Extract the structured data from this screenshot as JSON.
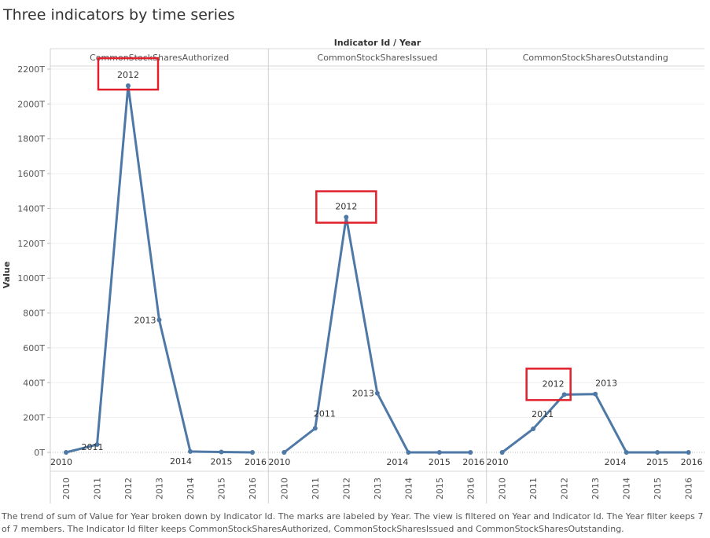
{
  "page": {
    "title": "Three indicators by time series",
    "caption": "The trend of sum of Value for Year broken down by Indicator Id.  The marks are labeled by Year. The view is filtered on Year and Indicator Id. The Year filter keeps 7 of 7 members. The Indicator Id filter keeps CommonStockSharesAuthorized, CommonStockSharesIssued and CommonStockSharesOutstanding."
  },
  "chart_data": {
    "type": "line",
    "header": "Indicator Id / Year",
    "ylabel": "Value",
    "ylim": [
      0,
      2200
    ],
    "yticks": [
      0,
      200,
      400,
      600,
      800,
      1000,
      1200,
      1400,
      1600,
      1800,
      2000,
      2200
    ],
    "ytick_labels": [
      "0T",
      "200T",
      "400T",
      "600T",
      "800T",
      "1000T",
      "1200T",
      "1400T",
      "1600T",
      "1800T",
      "2000T",
      "2200T"
    ],
    "categories": [
      "2010",
      "2011",
      "2012",
      "2013",
      "2014",
      "2015",
      "2016"
    ],
    "line_color": "#4e79a7",
    "highlight_color": "#e0202a",
    "highlight_year": "2012",
    "panels": [
      {
        "name": "CommonStockSharesAuthorized",
        "values": [
          0,
          45,
          2105,
          760,
          5,
          2,
          0
        ]
      },
      {
        "name": "CommonStockSharesIssued",
        "values": [
          0,
          138,
          1350,
          340,
          0,
          0,
          0
        ]
      },
      {
        "name": "CommonStockSharesOutstanding",
        "values": [
          0,
          135,
          332,
          335,
          0,
          0,
          0
        ]
      }
    ]
  }
}
